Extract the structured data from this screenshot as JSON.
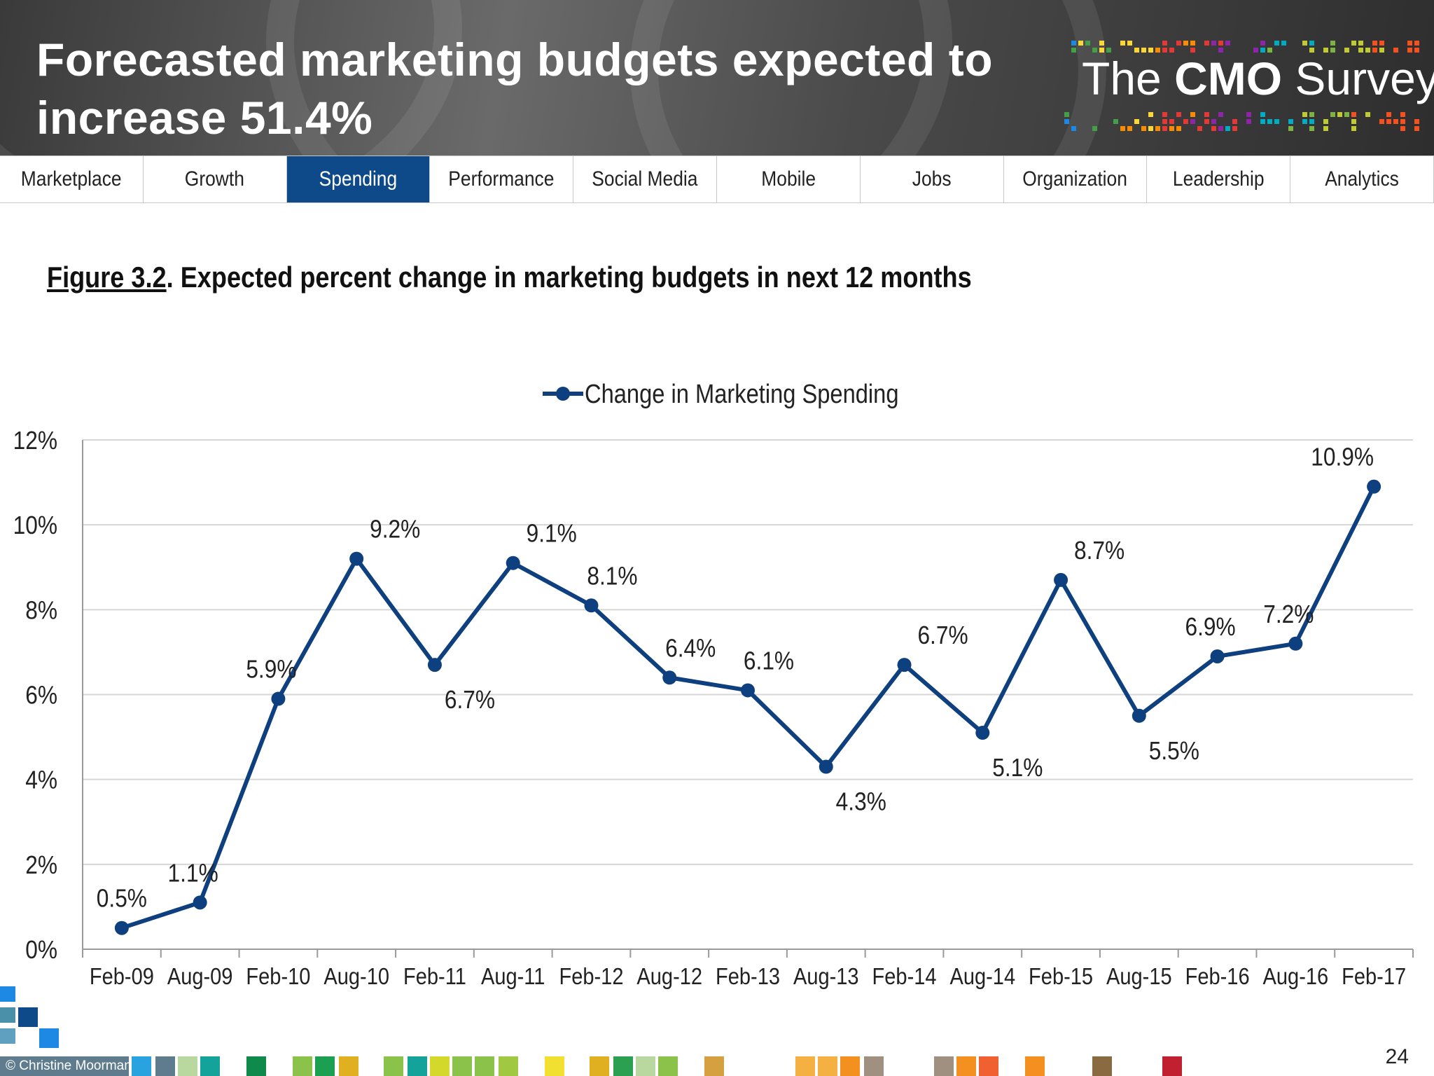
{
  "header": {
    "title": "Forecasted marketing budgets expected to increase 51.4%",
    "logo_prefix": "The",
    "logo_bold": "CMO",
    "logo_suffix": "Survey"
  },
  "nav": {
    "tabs": [
      {
        "label": "Marketplace",
        "active": false
      },
      {
        "label": "Growth",
        "active": false
      },
      {
        "label": "Spending",
        "active": true
      },
      {
        "label": "Performance",
        "active": false
      },
      {
        "label": "Social Media",
        "active": false
      },
      {
        "label": "Mobile",
        "active": false
      },
      {
        "label": "Jobs",
        "active": false
      },
      {
        "label": "Organization",
        "active": false
      },
      {
        "label": "Leadership",
        "active": false
      },
      {
        "label": "Analytics",
        "active": false
      }
    ],
    "active_color": "#0e4a8a"
  },
  "figure": {
    "label": "Figure 3.2",
    "title": ".  Expected percent change in marketing budgets in next 12 months"
  },
  "chart_data": {
    "type": "line",
    "title": "",
    "xlabel": "",
    "ylabel": "",
    "categories": [
      "Feb-09",
      "Aug-09",
      "Feb-10",
      "Aug-10",
      "Feb-11",
      "Aug-11",
      "Feb-12",
      "Aug-12",
      "Feb-13",
      "Aug-13",
      "Feb-14",
      "Aug-14",
      "Feb-15",
      "Aug-15",
      "Feb-16",
      "Aug-16",
      "Feb-17"
    ],
    "series": [
      {
        "name": "Change in Marketing Spending",
        "values": [
          0.5,
          1.1,
          5.9,
          9.2,
          6.7,
          9.1,
          8.1,
          6.4,
          6.1,
          4.3,
          6.7,
          5.1,
          8.7,
          5.5,
          6.9,
          7.2,
          10.9
        ],
        "data_labels": [
          "0.5%",
          "1.1%",
          "5.9%",
          "9.2%",
          "6.7%",
          "9.1%",
          "8.1%",
          "6.4%",
          "6.1%",
          "4.3%",
          "6.7%",
          "5.1%",
          "8.7%",
          "5.5%",
          "6.9%",
          "7.2%",
          "10.9%"
        ],
        "color": "#0e3f7e"
      }
    ],
    "ylim": [
      0,
      12
    ],
    "yticks": [
      "0%",
      "2%",
      "4%",
      "6%",
      "8%",
      "10%",
      "12%"
    ],
    "grid": true,
    "legend_position": "top-center"
  },
  "footer": {
    "copyright": "© Christine Moorman",
    "page_number": "24"
  }
}
